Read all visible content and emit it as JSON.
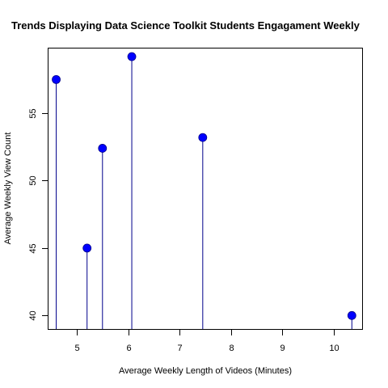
{
  "chart_data": {
    "type": "scatter",
    "style": "lollipop",
    "title": "Trends Displaying Data Science Toolkit Students Engagament Weekly",
    "xlabel": "Average Weekly Length of Videos (Minutes)",
    "ylabel": "Average Weekly View Count",
    "xlim": [
      4.45,
      10.55
    ],
    "ylim": [
      39.0,
      59.8
    ],
    "xticks": [
      5,
      6,
      7,
      8,
      9,
      10
    ],
    "yticks": [
      40,
      45,
      50,
      55
    ],
    "grid": false,
    "points": [
      {
        "x": 4.6,
        "y": 57.5
      },
      {
        "x": 5.2,
        "y": 45.0
      },
      {
        "x": 5.5,
        "y": 52.4
      },
      {
        "x": 6.07,
        "y": 59.2
      },
      {
        "x": 7.45,
        "y": 53.2
      },
      {
        "x": 10.35,
        "y": 40.0
      }
    ],
    "point_color": "#0000ff",
    "stem_color": "#00008b"
  }
}
